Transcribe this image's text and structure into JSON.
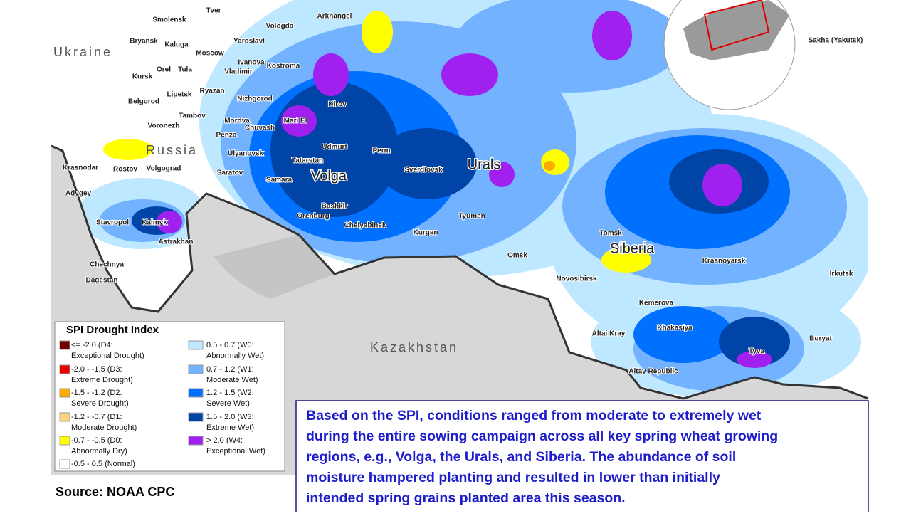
{
  "map": {
    "region_labels": [
      "Tver",
      "Smolensk",
      "Arkhangel",
      "Bryansk",
      "Kaluga",
      "Vologda",
      "Yaroslavl",
      "Moscow",
      "Ivanova",
      "Kostroma",
      "Vladimir",
      "Kursk",
      "Orel",
      "Tula",
      "Lipetsk",
      "Ryazan",
      "Nizhgorod",
      "Belgorod",
      "Kirov",
      "Tambov",
      "Mordva",
      "Voronezh",
      "Mari El",
      "Chuvash",
      "Penza",
      "Udmurt",
      "Perm",
      "Ulyanovsk",
      "Tatarstan",
      "Sverdlovsk",
      "Krasnodar",
      "Rostov",
      "Volgograd",
      "Saratov",
      "Samara",
      "Adygey",
      "Bashkir",
      "Tyumen",
      "Orenburg",
      "Stavropol",
      "Kalmyk",
      "Chelyabinsk",
      "Kurgan",
      "Omsk",
      "Tomsk",
      "Astrakhan",
      "Krasnoyarsk",
      "Irkutsk",
      "Chechnya",
      "Novosibirsk",
      "Dagestan",
      "Kemerova",
      "Khakasiya",
      "Altai Kray",
      "Buryat",
      "Tyva",
      "Altay Republic",
      "Sakha (Yakutsk)"
    ],
    "big_labels": [
      "Volga",
      "Urals",
      "Siberia"
    ],
    "country_labels": [
      "Ukraine",
      "Russia",
      "Kazakhstan"
    ]
  },
  "legend": {
    "title": "SPI Drought Index",
    "items": [
      {
        "lines": [
          "<= -2.0 (D4:",
          "Exceptional Drought)"
        ],
        "color": "#730000"
      },
      {
        "lines": [
          "-2.0 - -1.5  (D3:",
          "Extreme Drought)"
        ],
        "color": "#e60000"
      },
      {
        "lines": [
          "-1.5 - -1.2 (D2:",
          "Severe Drought)"
        ],
        "color": "#ffaa00"
      },
      {
        "lines": [
          "-1.2 - -0.7 (D1:",
          "Moderate Drought)"
        ],
        "color": "#fcd37f"
      },
      {
        "lines": [
          "-0.7 - -0.5 (D0:",
          "Abnormally Dry)"
        ],
        "color": "#ffff00"
      },
      {
        "lines": [
          "-0.5 - 0.5 (Normal)"
        ],
        "color": "#ffffff"
      },
      {
        "lines": [
          "0.5 - 0.7 (W0:",
          "Abnormally Wet)"
        ],
        "color": "#bee8ff"
      },
      {
        "lines": [
          "0.7 - 1.2 (W1:",
          "Moderate Wet)"
        ],
        "color": "#73b2ff"
      },
      {
        "lines": [
          "1.2 - 1.5 (W2:",
          "Severe Wet)"
        ],
        "color": "#0070ff"
      },
      {
        "lines": [
          "1.5 - 2.0 (W3:",
          "Extreme Wet)"
        ],
        "color": "#0044a8"
      },
      {
        "lines": [
          "> 2.0 (W4:",
          "Exceptional Wet)"
        ],
        "color": "#a020f0"
      }
    ]
  },
  "source": "Source: NOAA CPC",
  "text_box": {
    "lines": [
      "Based on the SPI, conditions ranged from moderate to extremely wet",
      "during the entire sowing campaign across all key spring wheat growing",
      "regions, e.g., Volga, the Urals, and Siberia. The abundance of soil",
      "moisture hampered planting and resulted in lower than initially",
      "intended spring grains planted area this season."
    ]
  }
}
